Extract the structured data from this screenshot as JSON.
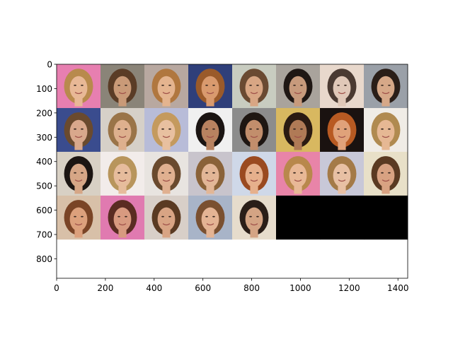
{
  "chart_data": {
    "type": "image_grid",
    "grid": {
      "rows": 4,
      "cols": 8,
      "tile_size": 180
    },
    "image_extent": {
      "width": 1440,
      "height": 880
    },
    "xlim": [
      0,
      1440
    ],
    "ylim": [
      880,
      0
    ],
    "x_ticks": [
      0,
      200,
      400,
      600,
      800,
      1000,
      1200,
      1400
    ],
    "y_ticks": [
      0,
      100,
      200,
      300,
      400,
      500,
      600,
      700,
      800
    ],
    "tiles": [
      {
        "row": 0,
        "col": 0,
        "bg": "#e77fb0",
        "hair": "#b88a4d",
        "skin": "#e8b896"
      },
      {
        "row": 0,
        "col": 1,
        "bg": "#8a8478",
        "hair": "#5a3c26",
        "skin": "#c99a78"
      },
      {
        "row": 0,
        "col": 2,
        "bg": "#b8a8a0",
        "hair": "#b0773f",
        "skin": "#e4b48f"
      },
      {
        "row": 0,
        "col": 3,
        "bg": "#2f3f7a",
        "hair": "#9a5a2a",
        "skin": "#d99a6e"
      },
      {
        "row": 0,
        "col": 4,
        "bg": "#c8ccc0",
        "hair": "#6a4a32",
        "skin": "#d8a684"
      },
      {
        "row": 0,
        "col": 5,
        "bg": "#a9a39c",
        "hair": "#1f1714",
        "skin": "#c79a7c"
      },
      {
        "row": 0,
        "col": 6,
        "bg": "#e8d8cc",
        "hair": "#4a3a32",
        "skin": "#e0c8b8"
      },
      {
        "row": 0,
        "col": 7,
        "bg": "#9aa0a8",
        "hair": "#2a1e18",
        "skin": "#d6a888"
      },
      {
        "row": 1,
        "col": 0,
        "bg": "#3a4c8e",
        "hair": "#6a4a2e",
        "skin": "#d9a88c"
      },
      {
        "row": 1,
        "col": 1,
        "bg": "#d6d0c8",
        "hair": "#9a7448",
        "skin": "#deb08e"
      },
      {
        "row": 1,
        "col": 2,
        "bg": "#b8bcd8",
        "hair": "#c49a5e",
        "skin": "#e8c0a0"
      },
      {
        "row": 1,
        "col": 3,
        "bg": "#f0f0f0",
        "hair": "#1a1412",
        "skin": "#b88260"
      },
      {
        "row": 1,
        "col": 4,
        "bg": "#8c8c8c",
        "hair": "#1e1612",
        "skin": "#c28e6c"
      },
      {
        "row": 1,
        "col": 5,
        "bg": "#d8b860",
        "hair": "#2a1a12",
        "skin": "#b07a56"
      },
      {
        "row": 1,
        "col": 6,
        "bg": "#1a1210",
        "hair": "#b85a22",
        "skin": "#e0a27a"
      },
      {
        "row": 1,
        "col": 7,
        "bg": "#f0ece6",
        "hair": "#b08a50",
        "skin": "#e6b894"
      },
      {
        "row": 2,
        "col": 0,
        "bg": "#d8d0c4",
        "hair": "#1c1512",
        "skin": "#d6a686"
      },
      {
        "row": 2,
        "col": 1,
        "bg": "#f2ecea",
        "hair": "#b8955c",
        "skin": "#e6bc9c"
      },
      {
        "row": 2,
        "col": 2,
        "bg": "#e8e4e0",
        "hair": "#6a4a2e",
        "skin": "#e0b090"
      },
      {
        "row": 2,
        "col": 3,
        "bg": "#c8c4cc",
        "hair": "#8a6238",
        "skin": "#e2b696"
      },
      {
        "row": 2,
        "col": 4,
        "bg": "#cfd8e8",
        "hair": "#9a4a20",
        "skin": "#e6b08c"
      },
      {
        "row": 2,
        "col": 5,
        "bg": "#e884a8",
        "hair": "#b8884c",
        "skin": "#e8b896"
      },
      {
        "row": 2,
        "col": 6,
        "bg": "#c8c8d8",
        "hair": "#a47a48",
        "skin": "#e8c0a4"
      },
      {
        "row": 2,
        "col": 7,
        "bg": "#e8e0c8",
        "hair": "#5a3a22",
        "skin": "#d8a282"
      },
      {
        "row": 3,
        "col": 0,
        "bg": "#d8c0a8",
        "hair": "#7a4426",
        "skin": "#dca07c"
      },
      {
        "row": 3,
        "col": 1,
        "bg": "#e07ab0",
        "hair": "#5a2c22",
        "skin": "#d89a80"
      },
      {
        "row": 3,
        "col": 2,
        "bg": "#d8cfc8",
        "hair": "#5a3a22",
        "skin": "#d8a484"
      },
      {
        "row": 3,
        "col": 3,
        "bg": "#a8b4c8",
        "hair": "#7a5030",
        "skin": "#e4b494"
      },
      {
        "row": 3,
        "col": 4,
        "bg": "#e6dccc",
        "hair": "#2a1e18",
        "skin": "#d4a484"
      },
      {
        "row": 3,
        "col": 5,
        "bg": "#000000",
        "hair": "",
        "skin": ""
      },
      {
        "row": 3,
        "col": 6,
        "bg": "#000000",
        "hair": "",
        "skin": ""
      },
      {
        "row": 3,
        "col": 7,
        "bg": "#000000",
        "hair": "",
        "skin": ""
      }
    ]
  }
}
